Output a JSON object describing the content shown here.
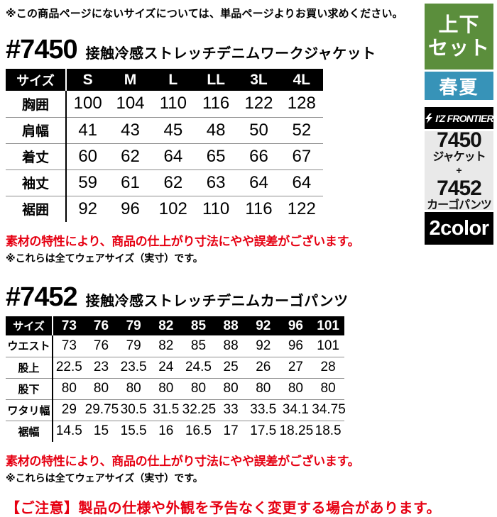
{
  "page": {
    "top_note": "※この商品ページにないサイズについては、単品ページよりお買い求めください。",
    "bottom_notice": "【ご注意】製品の仕様や外観を予告なく変更する場合があります。"
  },
  "colors": {
    "accent_red": "#e60012",
    "badge_green": "#5b8e3c",
    "badge_blue": "#3793b8",
    "badge_black": "#000000",
    "bundle_gray": "#e9e9e9"
  },
  "products": [
    {
      "code": "#7450",
      "name": "接触冷感ストレッチデニムワークジャケット",
      "table": {
        "header_label": "サイズ",
        "columns": [
          "S",
          "M",
          "L",
          "LL",
          "3L",
          "4L"
        ],
        "rows": [
          {
            "label": "胸囲",
            "values": [
              "100",
              "104",
              "110",
              "116",
              "122",
              "128"
            ]
          },
          {
            "label": "肩幅",
            "values": [
              "41",
              "43",
              "45",
              "48",
              "50",
              "52"
            ]
          },
          {
            "label": "着丈",
            "values": [
              "60",
              "62",
              "64",
              "65",
              "66",
              "67"
            ]
          },
          {
            "label": "袖丈",
            "values": [
              "59",
              "61",
              "62",
              "63",
              "64",
              "64"
            ]
          },
          {
            "label": "裾囲",
            "values": [
              "92",
              "96",
              "102",
              "110",
              "116",
              "122"
            ]
          }
        ]
      },
      "note_red": "素材の特性により、商品の仕上がり寸法にやや誤差がございます。",
      "note_black": "※これらは全てウェアサイズ（実寸）です。"
    },
    {
      "code": "#7452",
      "name": "接触冷感ストレッチデニムカーゴパンツ",
      "table": {
        "header_label": "サイズ",
        "columns": [
          "73",
          "76",
          "79",
          "82",
          "85",
          "88",
          "92",
          "96",
          "101"
        ],
        "rows": [
          {
            "label": "ウエスト",
            "values": [
              "73",
              "76",
              "79",
              "82",
              "85",
              "88",
              "92",
              "96",
              "101"
            ]
          },
          {
            "label": "股上",
            "values": [
              "22.5",
              "23",
              "23.5",
              "24",
              "24.5",
              "25",
              "26",
              "27",
              "28"
            ]
          },
          {
            "label": "股下",
            "values": [
              "80",
              "80",
              "80",
              "80",
              "80",
              "80",
              "80",
              "80",
              "80"
            ]
          },
          {
            "label": "ワタリ幅",
            "values": [
              "29",
              "29.75",
              "30.5",
              "31.5",
              "32.25",
              "33",
              "33.5",
              "34.1",
              "34.75"
            ]
          },
          {
            "label": "裾幅",
            "values": [
              "14.5",
              "15",
              "15.5",
              "16",
              "16.5",
              "17",
              "17.5",
              "18.25",
              "18.5"
            ]
          }
        ]
      },
      "note_red": "素材の特性により、商品の仕上がり寸法にやや誤差がございます。",
      "note_black": "※これらは全てウェアサイズ（実寸）です。"
    }
  ],
  "sidebar": {
    "set_badge": {
      "line1": "上下",
      "line2": "セット"
    },
    "season_badge": "春夏",
    "brand_logo": "I'Z FRONTIER",
    "bundle": {
      "code_top": "7450",
      "item_top": "ジャケット",
      "plus": "+",
      "code_bottom": "7452",
      "item_bottom": "カーゴパンツ"
    },
    "color_badge": "2color"
  }
}
